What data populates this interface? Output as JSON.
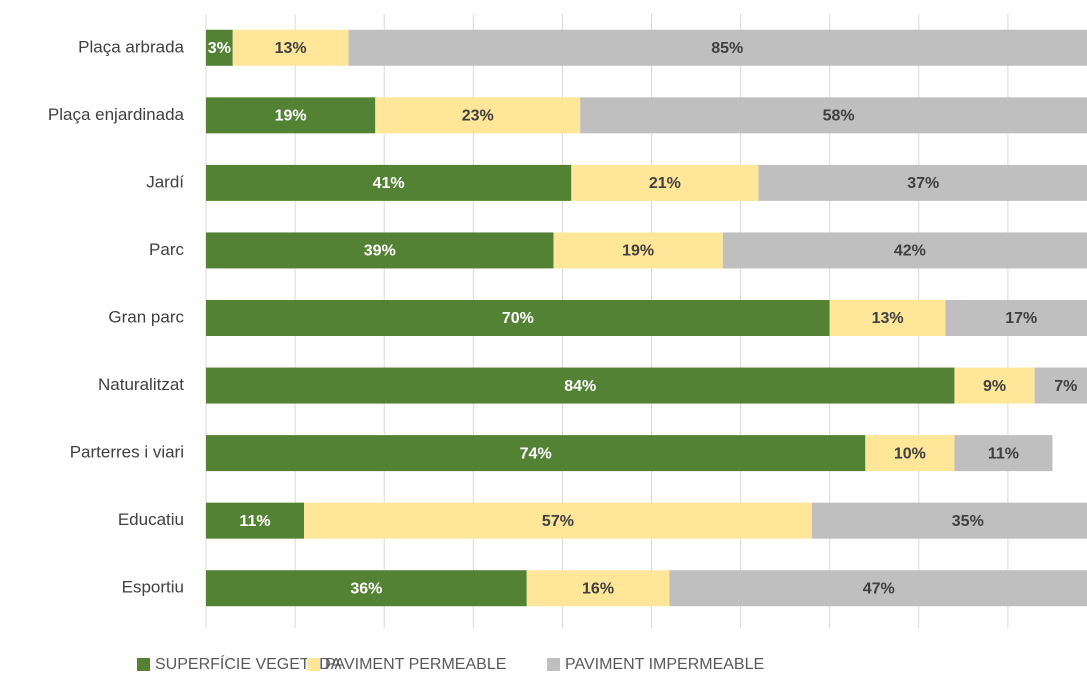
{
  "chart_data": {
    "type": "stacked_bar_horizontal",
    "categories": [
      "Plaça arbrada",
      "Plaça enjardinada",
      "Jardí",
      "Parc",
      "Gran parc",
      "Naturalitzat",
      "Parterres i viari",
      "Educatiu",
      "Esportiu"
    ],
    "series": [
      {
        "name": "SUPERFÍCIE VEGETADA",
        "color": "#548235",
        "values": [
          3,
          19,
          41,
          39,
          70,
          84,
          74,
          11,
          36
        ],
        "value_labels": [
          "3%",
          "19%",
          "41%",
          "39%",
          "70%",
          "84%",
          "74%",
          "11%",
          "36%"
        ]
      },
      {
        "name": "PAVIMENT PERMEABLE",
        "color": "#ffe699",
        "values": [
          13,
          23,
          21,
          19,
          13,
          9,
          10,
          57,
          16
        ],
        "value_labels": [
          "13%",
          "23%",
          "21%",
          "19%",
          "13%",
          "9%",
          "10%",
          "57%",
          "16%"
        ]
      },
      {
        "name": "PAVIMENT IMPERMEABLE",
        "color": "#bfbfbf",
        "values": [
          85,
          58,
          37,
          42,
          17,
          7,
          11,
          35,
          47
        ],
        "value_labels": [
          "85%",
          "58%",
          "37%",
          "42%",
          "17%",
          "7%",
          "11%",
          "35%",
          "47%"
        ]
      }
    ],
    "xlim": [
      0,
      100
    ],
    "xticks": [
      0,
      10,
      20,
      30,
      40,
      50,
      60,
      70,
      80,
      90,
      100
    ],
    "grid": true,
    "legend": "bottom"
  }
}
